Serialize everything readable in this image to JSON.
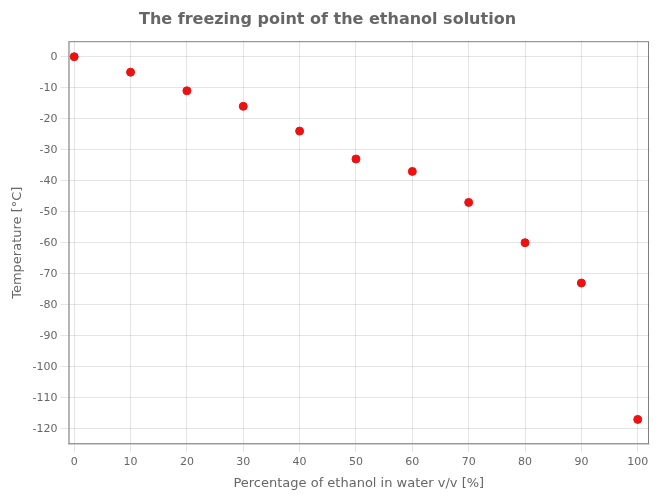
{
  "chart_data": {
    "type": "scatter",
    "title": "The freezing point of the ethanol solution",
    "xlabel": "Percentage of ethanol in water v/v [%]",
    "ylabel": "Temperature [°C]",
    "x": [
      0,
      10,
      20,
      30,
      40,
      50,
      60,
      70,
      80,
      90,
      100
    ],
    "y": [
      0,
      -5,
      -11,
      -16,
      -24,
      -33,
      -37,
      -47,
      -60,
      -73,
      -117
    ],
    "color": "#ee1111",
    "xlim": [
      -1,
      102
    ],
    "ylim": [
      -125,
      5
    ],
    "xticks": [
      0,
      10,
      20,
      30,
      40,
      50,
      60,
      70,
      80,
      90,
      100
    ],
    "yticks": [
      0,
      -10,
      -20,
      -30,
      -40,
      -50,
      -60,
      -70,
      -80,
      -90,
      -100,
      -110,
      -120
    ],
    "grid": true
  }
}
